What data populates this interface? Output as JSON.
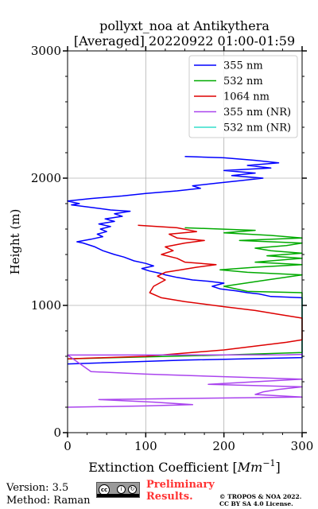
{
  "chart_data": {
    "type": "line",
    "title_lines": [
      "pollyxt_noa at Antikythera",
      "[Averaged] 20220922 01:00-01:59"
    ],
    "xlabel_prefix": "Extinction Coefficient [",
    "xlabel_unit": "Mm",
    "xlabel_exp": "−1",
    "xlabel_suffix": "]",
    "ylabel": "Height (m)",
    "xlim": [
      0,
      300
    ],
    "ylim": [
      0,
      3000
    ],
    "x_ticks": [
      "0",
      "100",
      "200",
      "300"
    ],
    "y_ticks": [
      "0",
      "1000",
      "2000",
      "3000"
    ],
    "grid": true,
    "legend_position": "top-right",
    "series": [
      {
        "name": "355 nm",
        "color": "#0000ff",
        "points": [
          [
            0,
            540
          ],
          [
            150,
            570
          ],
          [
            300,
            590
          ],
          [
            300,
            1060
          ],
          [
            260,
            1070
          ],
          [
            245,
            1090
          ],
          [
            230,
            1100
          ],
          [
            215,
            1115
          ],
          [
            195,
            1130
          ],
          [
            185,
            1150
          ],
          [
            200,
            1175
          ],
          [
            180,
            1190
          ],
          [
            160,
            1200
          ],
          [
            140,
            1220
          ],
          [
            125,
            1240
          ],
          [
            120,
            1250
          ],
          [
            105,
            1270
          ],
          [
            95,
            1290
          ],
          [
            110,
            1310
          ],
          [
            100,
            1330
          ],
          [
            85,
            1350
          ],
          [
            72,
            1380
          ],
          [
            60,
            1400
          ],
          [
            45,
            1430
          ],
          [
            35,
            1460
          ],
          [
            20,
            1490
          ],
          [
            12,
            1500
          ],
          [
            30,
            1520
          ],
          [
            45,
            1540
          ],
          [
            38,
            1560
          ],
          [
            50,
            1580
          ],
          [
            42,
            1600
          ],
          [
            55,
            1620
          ],
          [
            40,
            1640
          ],
          [
            60,
            1660
          ],
          [
            48,
            1680
          ],
          [
            70,
            1700
          ],
          [
            60,
            1720
          ],
          [
            80,
            1740
          ],
          [
            55,
            1750
          ],
          [
            30,
            1770
          ],
          [
            5,
            1790
          ],
          [
            15,
            1800
          ],
          [
            0,
            1820
          ],
          [
            30,
            1840
          ],
          [
            70,
            1860
          ],
          [
            100,
            1880
          ],
          [
            140,
            1900
          ],
          [
            170,
            1920
          ],
          [
            160,
            1940
          ],
          [
            190,
            1960
          ],
          [
            220,
            1980
          ],
          [
            250,
            2000
          ],
          [
            210,
            2020
          ],
          [
            240,
            2040
          ],
          [
            200,
            2060
          ],
          [
            260,
            2080
          ],
          [
            230,
            2100
          ],
          [
            270,
            2120
          ],
          [
            240,
            2140
          ],
          [
            200,
            2160
          ],
          [
            150,
            2170
          ]
        ]
      },
      {
        "name": "532 nm",
        "color": "#00aa00",
        "points": [
          [
            0,
            580
          ],
          [
            200,
            610
          ],
          [
            300,
            630
          ],
          [
            300,
            1100
          ],
          [
            230,
            1110
          ],
          [
            200,
            1150
          ],
          [
            255,
            1200
          ],
          [
            300,
            1240
          ],
          [
            230,
            1260
          ],
          [
            195,
            1280
          ],
          [
            240,
            1300
          ],
          [
            300,
            1320
          ],
          [
            240,
            1340
          ],
          [
            300,
            1370
          ],
          [
            255,
            1390
          ],
          [
            300,
            1410
          ],
          [
            260,
            1430
          ],
          [
            240,
            1450
          ],
          [
            280,
            1470
          ],
          [
            300,
            1490
          ],
          [
            220,
            1510
          ],
          [
            300,
            1530
          ],
          [
            260,
            1550
          ],
          [
            200,
            1570
          ],
          [
            240,
            1590
          ],
          [
            150,
            1610
          ]
        ]
      },
      {
        "name": "1064 nm",
        "color": "#dd0000",
        "points": [
          [
            0,
            580
          ],
          [
            100,
            600
          ],
          [
            200,
            650
          ],
          [
            280,
            710
          ],
          [
            300,
            730
          ],
          [
            300,
            900
          ],
          [
            270,
            930
          ],
          [
            240,
            960
          ],
          [
            200,
            990
          ],
          [
            150,
            1030
          ],
          [
            120,
            1060
          ],
          [
            105,
            1100
          ],
          [
            110,
            1150
          ],
          [
            125,
            1200
          ],
          [
            115,
            1230
          ],
          [
            125,
            1260
          ],
          [
            145,
            1280
          ],
          [
            165,
            1300
          ],
          [
            190,
            1320
          ],
          [
            150,
            1340
          ],
          [
            140,
            1370
          ],
          [
            120,
            1400
          ],
          [
            135,
            1430
          ],
          [
            125,
            1460
          ],
          [
            150,
            1490
          ],
          [
            175,
            1510
          ],
          [
            140,
            1530
          ],
          [
            130,
            1560
          ],
          [
            165,
            1580
          ],
          [
            140,
            1610
          ],
          [
            90,
            1630
          ]
        ]
      },
      {
        "name": "355 nm (NR)",
        "color": "#aa44ee",
        "points": [
          [
            0,
            200
          ],
          [
            100,
            210
          ],
          [
            160,
            220
          ],
          [
            110,
            240
          ],
          [
            40,
            260
          ],
          [
            300,
            280
          ],
          [
            240,
            300
          ],
          [
            250,
            320
          ],
          [
            270,
            340
          ],
          [
            300,
            360
          ],
          [
            180,
            380
          ],
          [
            240,
            400
          ],
          [
            300,
            420
          ],
          [
            200,
            440
          ],
          [
            100,
            460
          ],
          [
            30,
            480
          ],
          [
            0,
            610
          ],
          [
            280,
            612
          ],
          [
            300,
            615
          ]
        ]
      },
      {
        "name": "532 nm (NR)",
        "color": "#33ddcc",
        "points": []
      }
    ]
  },
  "footer": {
    "version": "Version: 3.5",
    "method": "Method: Raman",
    "preliminary_line1": "Preliminary",
    "preliminary_line2": "Results.",
    "copyright_line1": "© TROPOS & NOA 2022.",
    "copyright_line2": "CC BY SA 4.0 License.",
    "license_badge": {
      "cc": "cc",
      "by": "i",
      "sa": "↻"
    }
  }
}
